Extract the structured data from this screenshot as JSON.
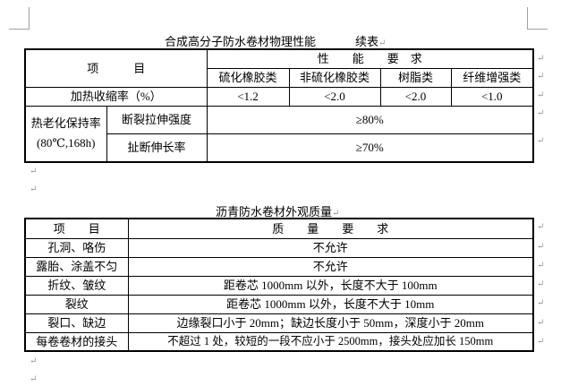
{
  "paragraph_mark": "↵",
  "table1": {
    "title": "合成高分子防水卷材物理性能",
    "title_suffix": "续表",
    "header_item": "项　　　目",
    "header_perf": "性　　能　　要　求",
    "categories": [
      "硫化橡胶类",
      "非硫化橡胶类",
      "树脂类",
      "纤维增强类"
    ],
    "row_shrink": {
      "label": "加热收缩率（%）",
      "values": [
        "<1.2",
        "<2.0",
        "<2.0",
        "<1.0"
      ]
    },
    "aging": {
      "label": "热老化保持率(80℃,168h)",
      "rows": [
        {
          "label": "断裂拉伸强度",
          "value": "≥80%"
        },
        {
          "label": "扯断伸长率",
          "value": "≥70%"
        }
      ]
    }
  },
  "table2": {
    "title": "沥青防水卷材外观质量",
    "header_item": "项　　目",
    "header_req": "质　　量　　要　　求",
    "rows": [
      {
        "item": "孔洞、咯伤",
        "req": "不允许"
      },
      {
        "item": "露胎、涂盖不匀",
        "req": "不允许"
      },
      {
        "item": "折纹、皱纹",
        "req": "距卷芯 1000mm 以外，长度不大于 100mm"
      },
      {
        "item": "裂纹",
        "req": "距卷芯 1000mm 以外，长度不大于 10mm"
      },
      {
        "item": "裂口、缺边",
        "req": "边缘裂口小于 20mm；缺边长度小于 50mm，深度小于 20mm"
      },
      {
        "item": "每卷卷材的接头",
        "req": "不超过 1 处，较短的一段不应小于 2500mm，接头处应加长 150mm"
      }
    ]
  }
}
